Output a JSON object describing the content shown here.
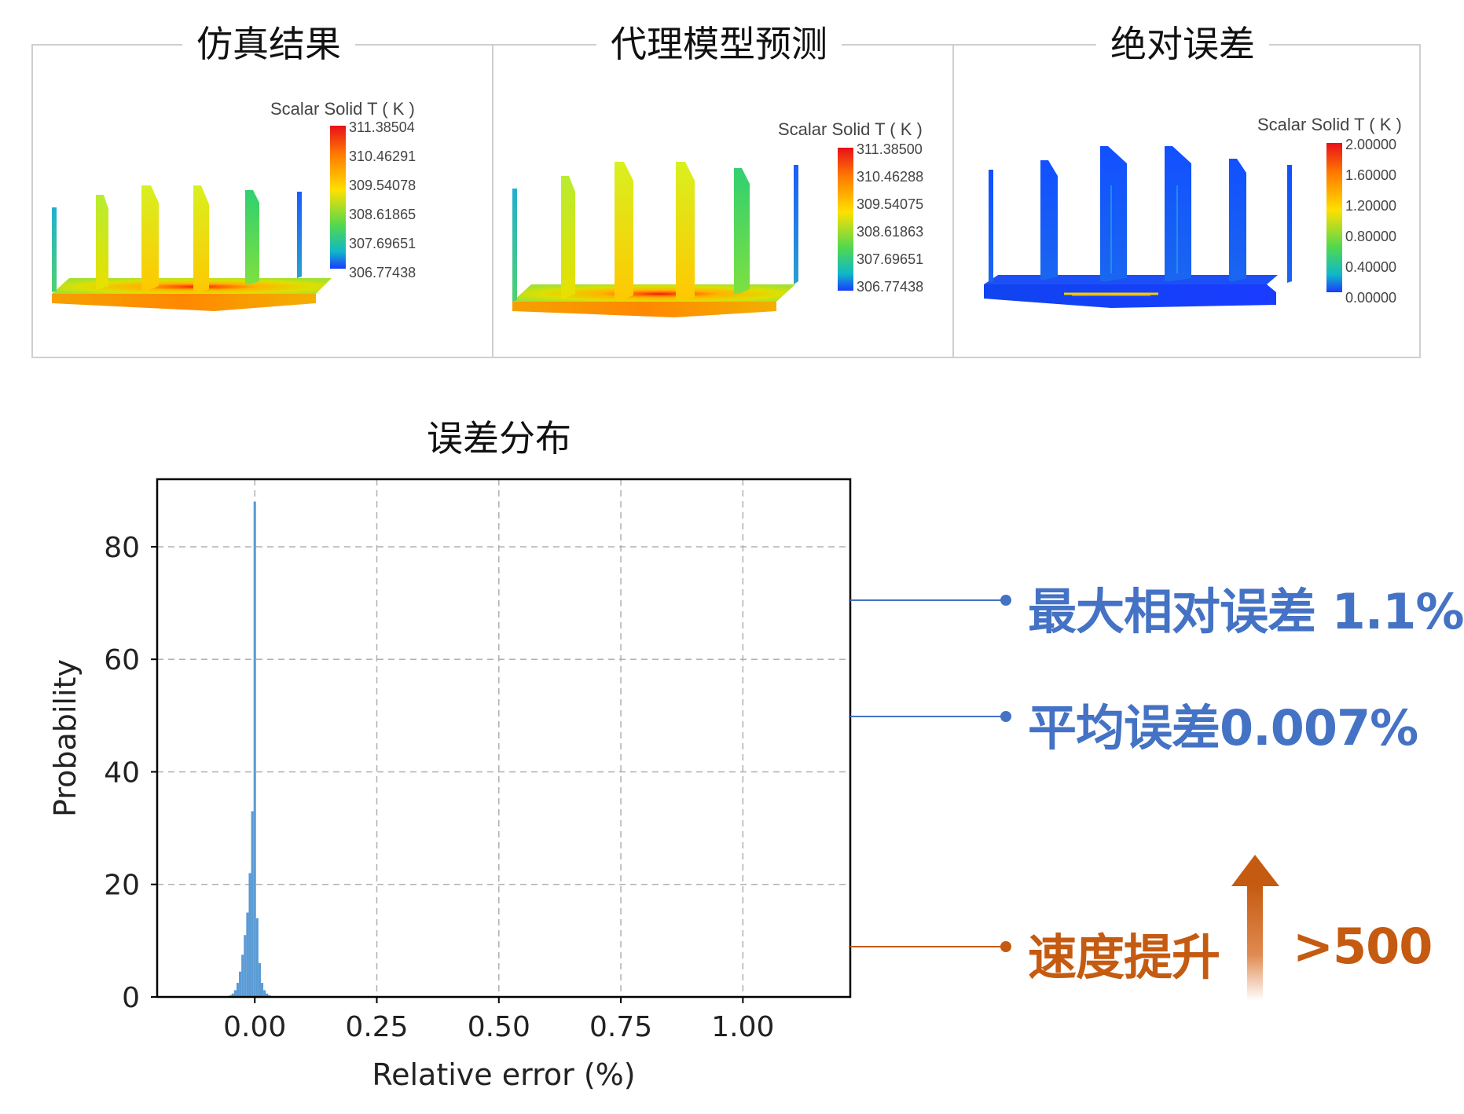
{
  "panels": [
    {
      "title": "仿真结果",
      "legend_title": "Scalar Solid T ( K )",
      "ticks": [
        "311.38504",
        "310.46291",
        "309.54078",
        "308.61865",
        "307.69651",
        "306.77438"
      ],
      "colormap": "temperature",
      "field_level": "hot"
    },
    {
      "title": "代理模型预测",
      "legend_title": "Scalar Solid T ( K )",
      "ticks": [
        "311.38500",
        "310.46288",
        "309.54075",
        "308.61863",
        "307.69651",
        "306.77438"
      ],
      "colormap": "temperature",
      "field_level": "hot"
    },
    {
      "title": "绝对误差",
      "legend_title": "Scalar Solid T ( K )",
      "ticks": [
        "2.00000",
        "1.60000",
        "1.20000",
        "0.80000",
        "0.40000",
        "0.00000"
      ],
      "colormap": "error",
      "field_level": "low"
    }
  ],
  "chart_data": {
    "type": "bar",
    "title": "误差分布",
    "xlabel": "Relative error (%)",
    "ylabel": "Probability",
    "xlim": [
      -0.2,
      1.22
    ],
    "ylim": [
      0,
      92
    ],
    "xticks": [
      0.0,
      0.25,
      0.5,
      0.75,
      1.0
    ],
    "xtick_labels": [
      "0.00",
      "0.25",
      "0.50",
      "0.75",
      "1.00"
    ],
    "yticks": [
      0,
      20,
      40,
      60,
      80
    ],
    "ytick_labels": [
      "0",
      "20",
      "40",
      "60",
      "80"
    ],
    "grid": true,
    "bar_color": "#5b9bd5",
    "bins": [
      {
        "x": -0.05,
        "y": 0.3
      },
      {
        "x": -0.045,
        "y": 0.6
      },
      {
        "x": -0.04,
        "y": 1.2
      },
      {
        "x": -0.035,
        "y": 2.5
      },
      {
        "x": -0.03,
        "y": 4.5
      },
      {
        "x": -0.025,
        "y": 7.5
      },
      {
        "x": -0.02,
        "y": 11
      },
      {
        "x": -0.015,
        "y": 15
      },
      {
        "x": -0.01,
        "y": 22
      },
      {
        "x": -0.005,
        "y": 33
      },
      {
        "x": 0.0,
        "y": 88
      },
      {
        "x": 0.005,
        "y": 14
      },
      {
        "x": 0.01,
        "y": 6
      },
      {
        "x": 0.015,
        "y": 2.5
      },
      {
        "x": 0.02,
        "y": 1.2
      },
      {
        "x": 0.025,
        "y": 0.6
      },
      {
        "x": 0.03,
        "y": 0.3
      }
    ]
  },
  "callouts": [
    {
      "text": "最大相对误差 1.1%",
      "color": "#4472c4"
    },
    {
      "text": "平均误差0.007%",
      "color": "#4472c4"
    },
    {
      "text": "速度提升",
      "color": "#c55a11",
      "arrow": "up-arrow-icon"
    },
    {
      "text": ">500",
      "color": "#c55a11"
    }
  ]
}
